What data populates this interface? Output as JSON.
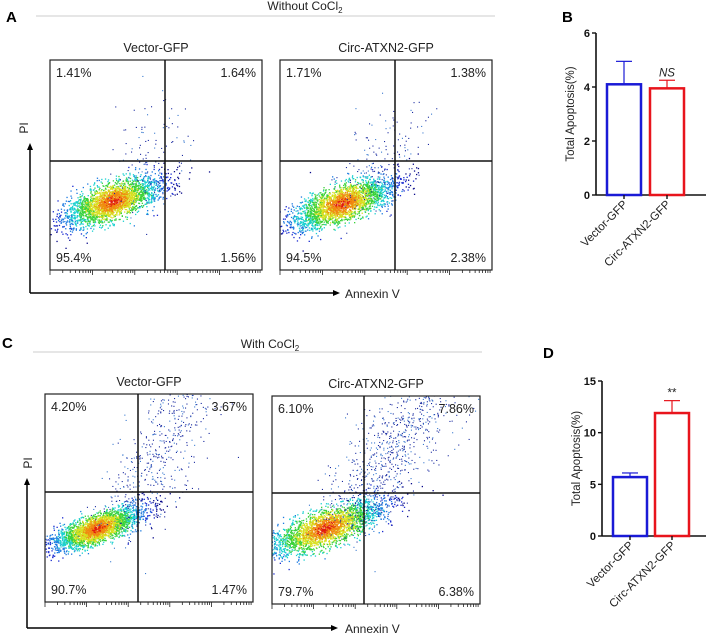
{
  "panels": {
    "A": {
      "letter": "A",
      "condition": "Without CoCl",
      "condition_sub": "2",
      "y_axis": "PI",
      "x_axis": "Annexin V",
      "plots": [
        {
          "title": "Vector-GFP",
          "quadrants": {
            "ul": "1.41%",
            "ur": "1.64%",
            "ll": "95.4%",
            "lr": "1.56%"
          }
        },
        {
          "title": "Circ-ATXN2-GFP",
          "quadrants": {
            "ul": "1.71%",
            "ur": "1.38%",
            "ll": "94.5%",
            "lr": "2.38%"
          }
        }
      ]
    },
    "C": {
      "letter": "C",
      "condition": "With CoCl",
      "condition_sub": "2",
      "y_axis": "PI",
      "x_axis": "Annexin V",
      "plots": [
        {
          "title": "Vector-GFP",
          "quadrants": {
            "ul": "4.20%",
            "ur": "3.67%",
            "ll": "90.7%",
            "lr": "1.47%"
          }
        },
        {
          "title": "Circ-ATXN2-GFP",
          "quadrants": {
            "ul": "6.10%",
            "ur": "7.86%",
            "ll": "79.7%",
            "lr": "6.38%"
          }
        }
      ]
    }
  },
  "chart_data": [
    {
      "panel": "B",
      "type": "bar",
      "title": "",
      "categories": [
        "Vector-GFP",
        "Circ-ATXN2-GFP"
      ],
      "values": [
        4.1,
        3.95
      ],
      "errors": [
        0.85,
        0.3
      ],
      "colors": [
        "#1a1ad6",
        "#e8141c"
      ],
      "annotations": [
        "",
        "NS"
      ],
      "ylabel": "Total Apoptosis(%)",
      "ylim": [
        0,
        6
      ],
      "yticks": [
        "0",
        "2",
        "4",
        "6"
      ]
    },
    {
      "panel": "D",
      "type": "bar",
      "title": "",
      "categories": [
        "Vector-GFP",
        "Circ-ATXN2-GFP"
      ],
      "values": [
        5.7,
        11.9
      ],
      "errors": [
        0.4,
        1.2
      ],
      "colors": [
        "#1a1ad6",
        "#e8141c"
      ],
      "annotations": [
        "",
        "**"
      ],
      "ylabel": "Total Apoptosis(%)",
      "ylim": [
        0,
        15
      ],
      "yticks": [
        "0",
        "5",
        "10",
        "15"
      ]
    }
  ]
}
